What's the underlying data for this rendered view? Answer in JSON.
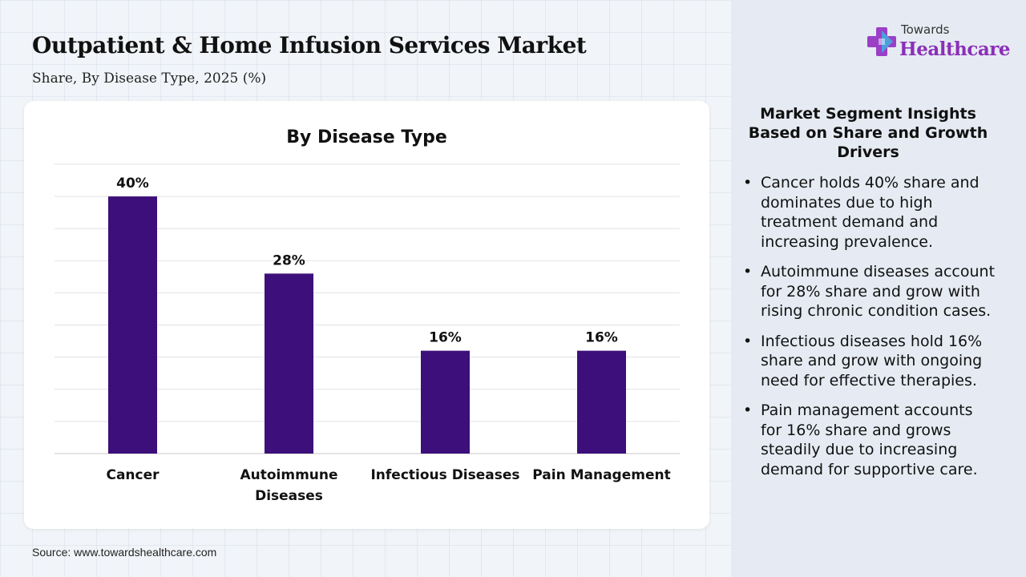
{
  "title": "Outpatient & Home Infusion Services Market",
  "subtitle": "Share, By Disease Type, 2025 (%)",
  "logo": {
    "small": "Towards",
    "big": "Healthcare"
  },
  "source": "Source: www.towardshealthcare.com",
  "insights": {
    "heading": "Market Segment Insights Based on Share and Growth Drivers",
    "items": [
      "Cancer holds 40% share and dominates due to high treatment demand and increasing prevalence.",
      "Autoimmune diseases account for 28% share and grow with rising chronic condition cases.",
      "Infectious diseases hold 16% share and grow with ongoing need for effective therapies.",
      "Pain management accounts for 16% share and grows steadily due to increasing demand for supportive care."
    ]
  },
  "chart_data": {
    "type": "bar",
    "title": "By Disease Type",
    "categories": [
      "Cancer",
      "Autoimmune Diseases",
      "Infectious Diseases",
      "Pain Management"
    ],
    "values": [
      40,
      28,
      16,
      16
    ],
    "data_labels": [
      "40%",
      "28%",
      "16%",
      "16%"
    ],
    "ylim": [
      0,
      45
    ],
    "grid": true,
    "bar_color": "#3d0f7a"
  }
}
